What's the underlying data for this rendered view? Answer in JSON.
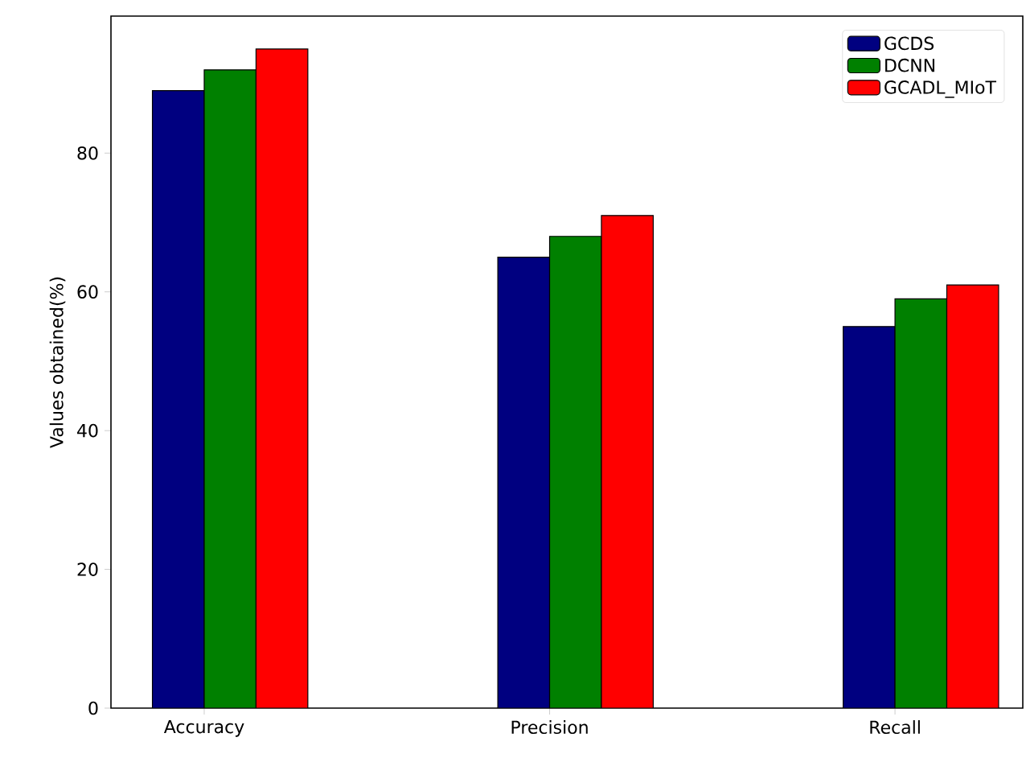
{
  "chart_data": {
    "type": "bar",
    "ylabel": "Values obtained(%)",
    "categories": [
      "Accuracy",
      "Precision",
      "Recall"
    ],
    "series": [
      {
        "name": "GCDS",
        "color": "#000080",
        "values": [
          89,
          65,
          55
        ]
      },
      {
        "name": "DCNN",
        "color": "#008000",
        "values": [
          92,
          68,
          59
        ]
      },
      {
        "name": "GCADL_MIoT",
        "color": "#ff0000",
        "values": [
          95,
          71,
          61
        ]
      }
    ],
    "ylim": [
      0,
      99.75
    ],
    "yticks": [
      0,
      20,
      40,
      60,
      80
    ],
    "legend": "top right"
  }
}
